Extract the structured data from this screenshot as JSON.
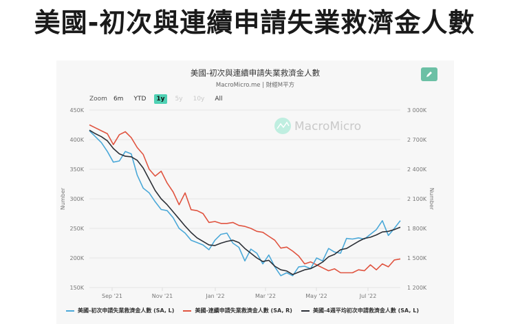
{
  "headline": "美國-初次與連續申請失業救濟金人數",
  "chart_header": {
    "title": "美國-初次與連續申請失業救濟金人數",
    "subtitle": "MacroMicro.me | 財經M平方",
    "edit_icon": "pencil-icon",
    "watermark": "MacroMicro"
  },
  "range_selector": {
    "label": "Zoom",
    "buttons": [
      {
        "label": "6m",
        "state": "normal"
      },
      {
        "label": "YTD",
        "state": "normal"
      },
      {
        "label": "1y",
        "state": "active"
      },
      {
        "label": "5y",
        "state": "disabled"
      },
      {
        "label": "10y",
        "state": "disabled"
      },
      {
        "label": "All",
        "state": "normal"
      }
    ]
  },
  "colors": {
    "initial": "#4aa8d8",
    "continuing": "#e0533f",
    "avg4w": "#2b2f36",
    "accent": "#4fd1b4",
    "edit_button": "#6cc0a5"
  },
  "legend": [
    {
      "label": "美國-初次申請失業救濟金人數 (SA, L)",
      "color": "#4aa8d8"
    },
    {
      "label": "美國-連續申請失業救濟金人數 (SA, R)",
      "color": "#e0533f"
    },
    {
      "label": "美國-4週平均初次申請救濟金人數 (SA, L)",
      "color": "#2b2f36"
    }
  ],
  "chart_data": {
    "type": "line",
    "title": "美國-初次與連續申請失業救濟金人數",
    "subtitle": "MacroMicro.me | 財經M平方",
    "x_tick_labels": [
      "Sep '21",
      "Nov '21",
      "Jan '22",
      "Mar '22",
      "May '22",
      "Jul '22"
    ],
    "x_start": "2021-08-14",
    "x_step": "weekly",
    "left_axis": {
      "label": "Number",
      "ticks": [
        "450K",
        "400K",
        "350K",
        "300K",
        "250K",
        "200K",
        "150K"
      ],
      "range": [
        150,
        450
      ],
      "unit": "K"
    },
    "right_axis": {
      "label": "Number",
      "ticks": [
        "3 000K",
        "2 700K",
        "2 400K",
        "2 100K",
        "1 800K",
        "1 500K",
        "1 200K"
      ],
      "range": [
        1200,
        3000
      ],
      "unit": "K"
    },
    "grid": true,
    "legend_position": "bottom",
    "series": [
      {
        "name": "美國-初次申請失業救濟金人數 (SA, L)",
        "axis": "left",
        "values": [
          415,
          405,
          395,
          380,
          362,
          364,
          380,
          376,
          340,
          318,
          310,
          295,
          282,
          280,
          268,
          250,
          242,
          230,
          226,
          222,
          214,
          230,
          240,
          242,
          225,
          218,
          195,
          215,
          208,
          190,
          205,
          185,
          170,
          175,
          170,
          185,
          186,
          182,
          200,
          195,
          216,
          210,
          208,
          233,
          232,
          234,
          232,
          240,
          248,
          263,
          238,
          250,
          263
        ]
      },
      {
        "name": "美國-連續申請失業救濟金人數 (SA, R)",
        "axis": "right",
        "values": [
          2850,
          2820,
          2790,
          2760,
          2650,
          2750,
          2780,
          2720,
          2620,
          2550,
          2400,
          2330,
          2380,
          2260,
          2170,
          2040,
          2160,
          1990,
          1980,
          1950,
          1860,
          1870,
          1850,
          1850,
          1860,
          1830,
          1820,
          1800,
          1770,
          1760,
          1720,
          1680,
          1600,
          1610,
          1570,
          1520,
          1440,
          1460,
          1430,
          1400,
          1370,
          1390,
          1350,
          1350,
          1350,
          1380,
          1370,
          1430,
          1380,
          1440,
          1410,
          1480,
          1490
        ]
      },
      {
        "name": "美國-4週平均初次申請救濟金人數 (SA, L)",
        "axis": "left",
        "values": [
          416,
          410,
          405,
          398,
          385,
          376,
          372,
          371,
          365,
          352,
          333,
          314,
          300,
          290,
          278,
          266,
          254,
          243,
          234,
          228,
          222,
          221,
          225,
          228,
          230,
          226,
          216,
          208,
          200,
          194,
          196,
          186,
          180,
          178,
          172,
          176,
          180,
          182,
          187,
          193,
          202,
          206,
          214,
          216,
          222,
          228,
          233,
          235,
          239,
          244,
          245,
          248,
          252
        ]
      }
    ]
  }
}
